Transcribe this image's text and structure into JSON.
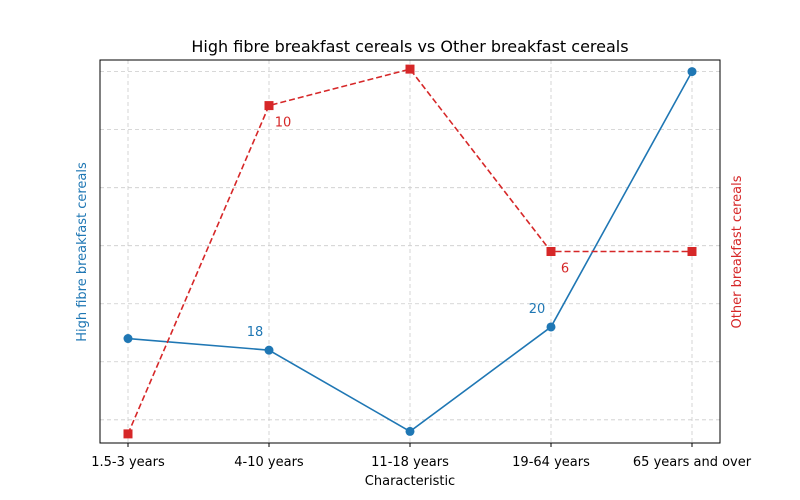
{
  "chart_data": {
    "type": "line",
    "title": "High fibre breakfast cereals vs Other breakfast cereals",
    "xlabel": "Characteristic",
    "ylabel_left": "High fibre breakfast cereals",
    "ylabel_right": "Other breakfast cereals",
    "categories": [
      "1.5-3 years",
      "4-10 years",
      "11-18 years",
      "19-64 years",
      "65 years and over"
    ],
    "grid": true,
    "y_tick_labels_shown": false,
    "series": [
      {
        "name": "High fibre breakfast cereals",
        "axis": "left",
        "color": "#1f77b4",
        "line_style": "solid",
        "marker": "circle",
        "values": [
          19,
          18,
          11,
          20,
          42
        ],
        "ylim": [
          10,
          43
        ],
        "data_labels": [
          null,
          "18",
          null,
          "20",
          null
        ]
      },
      {
        "name": "Other breakfast cereals",
        "axis": "right",
        "color": "#d62728",
        "line_style": "dashed",
        "marker": "square",
        "values": [
          1,
          10,
          11,
          6,
          6
        ],
        "ylim": [
          0.75,
          11.25
        ],
        "data_labels": [
          null,
          "10",
          null,
          "6",
          null
        ]
      }
    ]
  }
}
